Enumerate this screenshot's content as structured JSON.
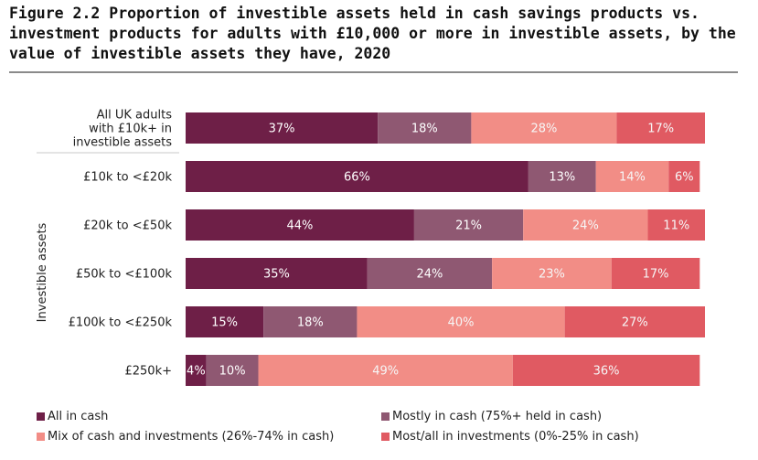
{
  "figure": {
    "title": "Figure 2.2  Proportion of investible assets held in cash savings products vs. investment products for adults with £10,000 or more in investible assets, by the value of investible assets they have, 2020"
  },
  "chart_data": {
    "type": "bar",
    "orientation": "horizontal",
    "stacked": true,
    "xlim": [
      0,
      100
    ],
    "ylabel": "Investible assets",
    "categories": [
      [
        "All UK adults",
        "with £10k+ in",
        "investible assets"
      ],
      [
        "£10k to <£20k"
      ],
      [
        "£20k to <£50k"
      ],
      [
        "£50k to <£100k"
      ],
      [
        "£100k to <£250k"
      ],
      [
        "£250k+"
      ]
    ],
    "series": [
      {
        "name": "All in cash",
        "color": "#6e1f47",
        "values": [
          37,
          66,
          44,
          35,
          15,
          4
        ],
        "labels": [
          "37%",
          "66%",
          "44%",
          "35%",
          "15%",
          "4%"
        ]
      },
      {
        "name": "Mostly in cash (75%+ held in cash)",
        "color": "#8f5872",
        "values": [
          18,
          13,
          21,
          24,
          18,
          10
        ],
        "labels": [
          "18%",
          "13%",
          "21%",
          "24%",
          "18%",
          "10%"
        ]
      },
      {
        "name": "Mix of cash and investments (26%-74% in cash)",
        "color": "#f28d86",
        "values": [
          28,
          14,
          24,
          23,
          40,
          49
        ],
        "labels": [
          "28%",
          "14%",
          "24%",
          "23%",
          "40%",
          "49%"
        ]
      },
      {
        "name": "Most/all in investments (0%-25% in cash)",
        "color": "#e05a62",
        "values": [
          17,
          6,
          11,
          17,
          27,
          36
        ],
        "labels": [
          "17%",
          "6%",
          "11%",
          "17%",
          "27%",
          "36%"
        ]
      }
    ],
    "legend_position": "bottom",
    "label_colors": {
      "dark": "#ffffff",
      "light": "#f6f6f6"
    }
  }
}
